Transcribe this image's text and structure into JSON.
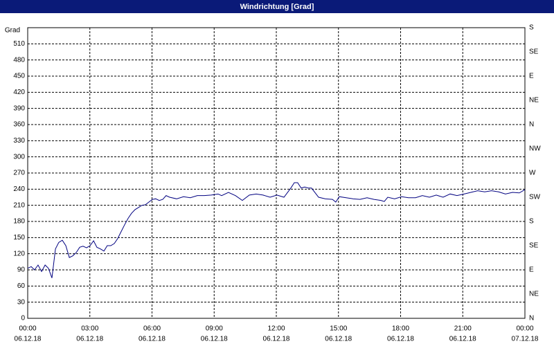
{
  "chart_data": {
    "type": "line",
    "title": "Windrichtung [Grad]",
    "ylabel": "Grad",
    "xlim": [
      0,
      24
    ],
    "ylim": [
      0,
      540
    ],
    "y2lim": [
      0,
      540
    ],
    "xticks": [
      {
        "value": 0,
        "label": "00:00"
      },
      {
        "value": 3,
        "label": "03:00"
      },
      {
        "value": 6,
        "label": "06:00"
      },
      {
        "value": 9,
        "label": "09:00"
      },
      {
        "value": 12,
        "label": "12:00"
      },
      {
        "value": 15,
        "label": "15:00"
      },
      {
        "value": 18,
        "label": "18:00"
      },
      {
        "value": 21,
        "label": "21:00"
      },
      {
        "value": 24,
        "label": "00:00"
      }
    ],
    "xtick_dates": [
      "06.12.18",
      "06.12.18",
      "06.12.18",
      "06.12.18",
      "06.12.18",
      "06.12.18",
      "06.12.18",
      "06.12.18",
      "07.12.18"
    ],
    "yticks": [
      0,
      30,
      60,
      90,
      120,
      150,
      180,
      210,
      240,
      270,
      300,
      330,
      360,
      390,
      420,
      450,
      480,
      510
    ],
    "y2ticks": [
      {
        "value": 0,
        "label": "N"
      },
      {
        "value": 45,
        "label": "NE"
      },
      {
        "value": 90,
        "label": "E"
      },
      {
        "value": 135,
        "label": "SE"
      },
      {
        "value": 180,
        "label": "S"
      },
      {
        "value": 225,
        "label": "SW"
      },
      {
        "value": 270,
        "label": "W"
      },
      {
        "value": 315,
        "label": "NW"
      },
      {
        "value": 360,
        "label": "N"
      },
      {
        "value": 405,
        "label": "NE"
      },
      {
        "value": 450,
        "label": "E"
      },
      {
        "value": 495,
        "label": "SE"
      },
      {
        "value": 540,
        "label": "S"
      }
    ],
    "grid": true,
    "color": "#000080",
    "x": [
      0,
      0.17,
      0.33,
      0.5,
      0.67,
      0.84,
      1.0,
      1.17,
      1.34,
      1.5,
      1.67,
      1.84,
      2.01,
      2.17,
      2.34,
      2.51,
      2.67,
      2.84,
      3.01,
      3.18,
      3.34,
      3.51,
      3.68,
      3.84,
      4.01,
      4.18,
      4.34,
      4.51,
      4.68,
      4.85,
      5.01,
      5.18,
      5.35,
      5.51,
      5.68,
      5.85,
      6.02,
      6.18,
      6.35,
      6.52,
      6.68,
      6.85,
      7.19,
      7.52,
      7.85,
      8.19,
      8.52,
      8.86,
      9.19,
      9.36,
      9.69,
      10.03,
      10.36,
      10.7,
      11.03,
      11.36,
      11.7,
      12.03,
      12.37,
      12.7,
      12.87,
      13.03,
      13.2,
      13.37,
      13.54,
      13.7,
      14.04,
      14.37,
      14.71,
      14.87,
      15.04,
      15.37,
      15.71,
      16.04,
      16.38,
      16.71,
      17.05,
      17.21,
      17.38,
      17.71,
      18.05,
      18.38,
      18.72,
      19.05,
      19.39,
      19.72,
      20.05,
      20.39,
      20.72,
      21.06,
      21.39,
      21.72,
      22.06,
      22.39,
      22.73,
      23.06,
      23.4,
      23.73,
      24
    ],
    "values": [
      93,
      96,
      90,
      99,
      87,
      99,
      93,
      75,
      129,
      141,
      145,
      135,
      113,
      116,
      122,
      132,
      134,
      131,
      135,
      144,
      132,
      129,
      125,
      135,
      135,
      139,
      148,
      161,
      174,
      186,
      195,
      202,
      206,
      210,
      211,
      216,
      221,
      222,
      219,
      221,
      228,
      225,
      222,
      226,
      224,
      228,
      228,
      229,
      231,
      228,
      234,
      228,
      219,
      229,
      231,
      229,
      225,
      229,
      225,
      242,
      252,
      252,
      242,
      244,
      242,
      242,
      225,
      222,
      221,
      216,
      226,
      224,
      222,
      221,
      224,
      221,
      219,
      217,
      225,
      222,
      226,
      224,
      224,
      228,
      225,
      229,
      225,
      231,
      228,
      231,
      234,
      237,
      235,
      237,
      235,
      231,
      234,
      233,
      239
    ]
  }
}
